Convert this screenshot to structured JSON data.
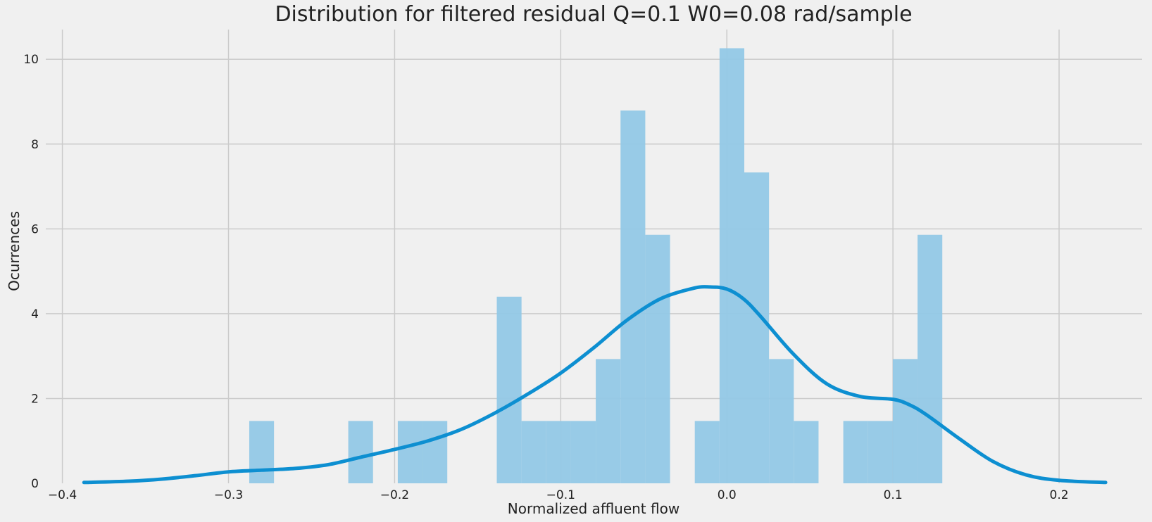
{
  "chart_data": {
    "type": "bar",
    "title": "Distribution for filtered residual Q=0.1 W0=0.08 rad/sample",
    "xlabel": "Normalized affluent flow",
    "ylabel": "Ocurrences",
    "xlim": [
      -0.41,
      0.25
    ],
    "ylim": [
      0,
      10.7
    ],
    "x_ticks": [
      -0.4,
      -0.3,
      -0.2,
      -0.1,
      0.0,
      0.1,
      0.2
    ],
    "x_tick_labels": [
      "−0.4",
      "−0.3",
      "−0.2",
      "−0.1",
      "0.0",
      "0.1",
      "0.2"
    ],
    "y_ticks": [
      0,
      2,
      4,
      6,
      8,
      10
    ],
    "y_tick_labels": [
      "0",
      "2",
      "4",
      "6",
      "8",
      "10"
    ],
    "grid": true,
    "bar_color": "#92c8e6",
    "line_color": "#0d8fd1",
    "background": "#f0f0f0",
    "grid_color": "#cbcbcb",
    "histogram": {
      "bin_edges": [
        -0.2875,
        -0.2726,
        -0.2577,
        -0.2428,
        -0.2279,
        -0.213,
        -0.1981,
        -0.1832,
        -0.1683,
        -0.1534,
        -0.1385,
        -0.1236,
        -0.1087,
        -0.0938,
        -0.0789,
        -0.064,
        -0.0491,
        -0.0342,
        -0.0193,
        -0.0044,
        0.0105,
        0.0254,
        0.0403,
        0.0552,
        0.0701,
        0.085,
        0.0999,
        0.1148,
        0.1297
      ],
      "values": [
        1.47,
        0,
        0,
        0,
        1.47,
        0,
        1.47,
        1.47,
        0,
        0,
        4.4,
        1.47,
        1.47,
        1.47,
        2.93,
        8.79,
        5.86,
        0,
        1.47,
        10.26,
        7.33,
        2.93,
        1.47,
        0,
        1.47,
        1.47,
        2.93,
        5.86
      ]
    },
    "kde": {
      "x": [
        -0.387,
        -0.36,
        -0.34,
        -0.32,
        -0.3,
        -0.28,
        -0.26,
        -0.24,
        -0.22,
        -0.2,
        -0.18,
        -0.16,
        -0.14,
        -0.12,
        -0.1,
        -0.08,
        -0.06,
        -0.04,
        -0.02,
        -0.01,
        0.0,
        0.01,
        0.02,
        0.04,
        0.06,
        0.08,
        0.1,
        0.11,
        0.12,
        0.14,
        0.16,
        0.18,
        0.2,
        0.228
      ],
      "y": [
        0.02,
        0.05,
        0.1,
        0.18,
        0.27,
        0.31,
        0.35,
        0.44,
        0.62,
        0.8,
        1.0,
        1.27,
        1.65,
        2.1,
        2.6,
        3.2,
        3.85,
        4.35,
        4.6,
        4.63,
        4.58,
        4.35,
        3.95,
        3.05,
        2.35,
        2.05,
        1.98,
        1.85,
        1.62,
        1.05,
        0.52,
        0.2,
        0.07,
        0.02
      ]
    }
  }
}
